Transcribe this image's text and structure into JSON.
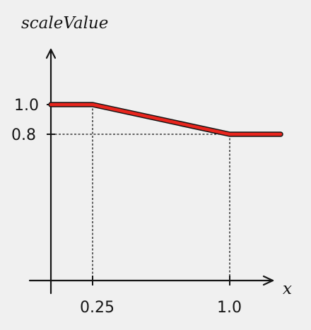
{
  "chart_data": {
    "type": "line",
    "title": "",
    "ylabel": "scaleValue",
    "xlabel": "x",
    "x_ticks": [
      "0.25",
      "1.0"
    ],
    "y_ticks": [
      "1.0",
      "0.8"
    ],
    "series": [
      {
        "points": [
          {
            "x": 0,
            "y": 1.0
          },
          {
            "x": 0.25,
            "y": 1.0
          },
          {
            "x": 1.0,
            "y": 0.8
          },
          {
            "x": 1.3,
            "y": 0.8
          }
        ]
      }
    ],
    "xlim": [
      0,
      1.3
    ],
    "ylim": [
      0,
      1.0
    ],
    "grid": false,
    "legend": "none",
    "line_color": "#e8251d",
    "axis_color": "#151515",
    "background": "#f0f0f0"
  }
}
